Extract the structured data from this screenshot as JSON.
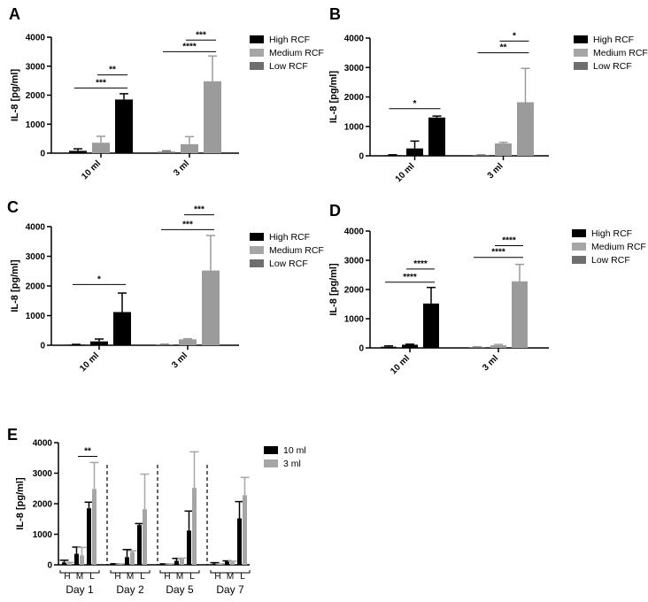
{
  "chart_data": [
    {
      "panel": "A",
      "type": "bar",
      "ylabel": "IL-8 [pg/ml]",
      "ylim": [
        0,
        4000
      ],
      "yticks": [
        0,
        1000,
        2000,
        3000,
        4000
      ],
      "categories": [
        "10 ml",
        "3 ml"
      ],
      "series": [
        {
          "name": "High RCF",
          "color": "#000000",
          "values": [
            80,
            50
          ],
          "errors": [
            70,
            30
          ]
        },
        {
          "name": "Medium RCF",
          "color": "#9b9b9b",
          "values": [
            360,
            310
          ],
          "errors": [
            220,
            260
          ]
        },
        {
          "name": "Low RCF",
          "color": "#000000",
          "values": [
            1850,
            2480
          ],
          "errors": [
            200,
            870
          ]
        }
      ],
      "legend": {
        "position": "right",
        "labels": [
          "High RCF",
          "Medium RCF",
          "Low RCF"
        ],
        "colors": [
          "#000000",
          "#a6a6a6",
          "#6e6e6e"
        ]
      },
      "significance": [
        {
          "group": 0,
          "from": 0,
          "to": 2,
          "label": "***",
          "y": 2250
        },
        {
          "group": 0,
          "from": 1,
          "to": 2,
          "label": "**",
          "y": 2700
        },
        {
          "group": 1,
          "from": 0,
          "to": 2,
          "label": "****",
          "y": 3500
        },
        {
          "group": 1,
          "from": 1,
          "to": 2,
          "label": "***",
          "y": 3900
        }
      ]
    },
    {
      "panel": "B",
      "type": "bar",
      "ylabel": "IL-8 [pg/ml]",
      "ylim": [
        0,
        4000
      ],
      "yticks": [
        0,
        1000,
        2000,
        3000,
        4000
      ],
      "categories": [
        "10 ml",
        "3 ml"
      ],
      "series": [
        {
          "name": "High RCF",
          "color": "#000000",
          "values": [
            20,
            20
          ],
          "errors": [
            15,
            10
          ]
        },
        {
          "name": "Medium RCF",
          "color": "#000000",
          "values": [
            250,
            420
          ],
          "errors": [
            250,
            40
          ]
        },
        {
          "name": "Low RCF",
          "color": "#000000",
          "values": [
            1300,
            1820
          ],
          "errors": [
            50,
            1150
          ]
        }
      ],
      "group_colors": [
        [
          "#000000",
          "#000000",
          "#000000"
        ],
        [
          "#6e6e6e",
          "#9b9b9b",
          "#9b9b9b"
        ]
      ],
      "legend": {
        "position": "right",
        "labels": [
          "High RCF",
          "Medium RCF",
          "Low RCF"
        ],
        "colors": [
          "#000000",
          "#a6a6a6",
          "#6e6e6e"
        ]
      },
      "significance": [
        {
          "group": 0,
          "from": 0,
          "to": 2,
          "label": "*",
          "y": 1600
        },
        {
          "group": 1,
          "from": 0,
          "to": 2,
          "label": "**",
          "y": 3500
        },
        {
          "group": 1,
          "from": 1,
          "to": 2,
          "label": "*",
          "y": 3900
        }
      ]
    },
    {
      "panel": "C",
      "type": "bar",
      "ylabel": "IL-8 [pg/ml]",
      "ylim": [
        0,
        4000
      ],
      "yticks": [
        0,
        1000,
        2000,
        3000,
        4000
      ],
      "categories": [
        "10 ml",
        "3 ml"
      ],
      "series": [
        {
          "name": "High RCF",
          "color": "#000000",
          "values": [
            20,
            20
          ],
          "errors": [
            10,
            10
          ]
        },
        {
          "name": "Medium RCF",
          "color": "#000000",
          "values": [
            130,
            200
          ],
          "errors": [
            80,
            20
          ]
        },
        {
          "name": "Low RCF",
          "color": "#000000",
          "values": [
            1120,
            2520
          ],
          "errors": [
            640,
            1180
          ]
        }
      ],
      "group_colors": [
        [
          "#000000",
          "#000000",
          "#000000"
        ],
        [
          "#6e6e6e",
          "#9b9b9b",
          "#9b9b9b"
        ]
      ],
      "legend": {
        "position": "right",
        "labels": [
          "High RCF",
          "Medium RCF",
          "Low RCF"
        ],
        "colors": [
          "#000000",
          "#a6a6a6",
          "#6e6e6e"
        ]
      },
      "significance": [
        {
          "group": 0,
          "from": 0,
          "to": 2,
          "label": "*",
          "y": 2050
        },
        {
          "group": 1,
          "from": 0,
          "to": 2,
          "label": "***",
          "y": 3900
        },
        {
          "group": 1,
          "from": 1,
          "to": 2,
          "label": "***",
          "y": 4400
        }
      ]
    },
    {
      "panel": "D",
      "type": "bar",
      "ylabel": "IL-8 [pg/ml]",
      "ylim": [
        0,
        4000
      ],
      "yticks": [
        0,
        1000,
        2000,
        3000,
        4000
      ],
      "categories": [
        "10 ml",
        "3 ml"
      ],
      "series": [
        {
          "name": "High RCF",
          "color": "#000000",
          "values": [
            40,
            20
          ],
          "errors": [
            30,
            10
          ]
        },
        {
          "name": "Medium RCF",
          "color": "#000000",
          "values": [
            110,
            90
          ],
          "errors": [
            20,
            30
          ]
        },
        {
          "name": "Low RCF",
          "color": "#000000",
          "values": [
            1520,
            2280
          ],
          "errors": [
            550,
            580
          ]
        }
      ],
      "group_colors": [
        [
          "#000000",
          "#000000",
          "#000000"
        ],
        [
          "#6e6e6e",
          "#9b9b9b",
          "#9b9b9b"
        ]
      ],
      "legend": {
        "position": "right",
        "labels": [
          "High RCF",
          "Medium RCF",
          "Low RCF"
        ],
        "colors": [
          "#000000",
          "#a6a6a6",
          "#6e6e6e"
        ]
      },
      "significance": [
        {
          "group": 0,
          "from": 0,
          "to": 2,
          "label": "****",
          "y": 2250
        },
        {
          "group": 0,
          "from": 1,
          "to": 2,
          "label": "****",
          "y": 2700
        },
        {
          "group": 1,
          "from": 0,
          "to": 2,
          "label": "****",
          "y": 3100
        },
        {
          "group": 1,
          "from": 1,
          "to": 2,
          "label": "****",
          "y": 3500
        }
      ]
    },
    {
      "panel": "E",
      "type": "bar",
      "ylabel": "IL-8 [pg/ml]",
      "ylim": [
        0,
        4000
      ],
      "yticks": [
        0,
        1000,
        2000,
        3000,
        4000
      ],
      "days": [
        "Day 1",
        "Day 2",
        "Day 5",
        "Day 7"
      ],
      "sub_categories": [
        "H",
        "M",
        "L"
      ],
      "series": [
        {
          "name": "10 ml",
          "color": "#000000",
          "values": [
            [
              80,
              360,
              1850
            ],
            [
              20,
              250,
              1300
            ],
            [
              20,
              130,
              1120
            ],
            [
              40,
              110,
              1520
            ]
          ],
          "errors": [
            [
              70,
              220,
              200
            ],
            [
              15,
              250,
              50
            ],
            [
              10,
              80,
              640
            ],
            [
              30,
              20,
              550
            ]
          ]
        },
        {
          "name": "3 ml",
          "color": "#a6a6a6",
          "values": [
            [
              50,
              310,
              2480
            ],
            [
              20,
              420,
              1820
            ],
            [
              20,
              200,
              2520
            ],
            [
              20,
              90,
              2280
            ]
          ],
          "errors": [
            [
              30,
              260,
              870
            ],
            [
              10,
              40,
              1150
            ],
            [
              10,
              20,
              1180
            ],
            [
              10,
              30,
              580
            ]
          ]
        }
      ],
      "legend": {
        "position": "right",
        "labels": [
          "10 ml",
          "3 ml"
        ],
        "colors": [
          "#000000",
          "#a6a6a6"
        ]
      },
      "significance": [
        {
          "day": 0,
          "sub": 2,
          "label": "**",
          "y": 3550
        }
      ]
    }
  ]
}
